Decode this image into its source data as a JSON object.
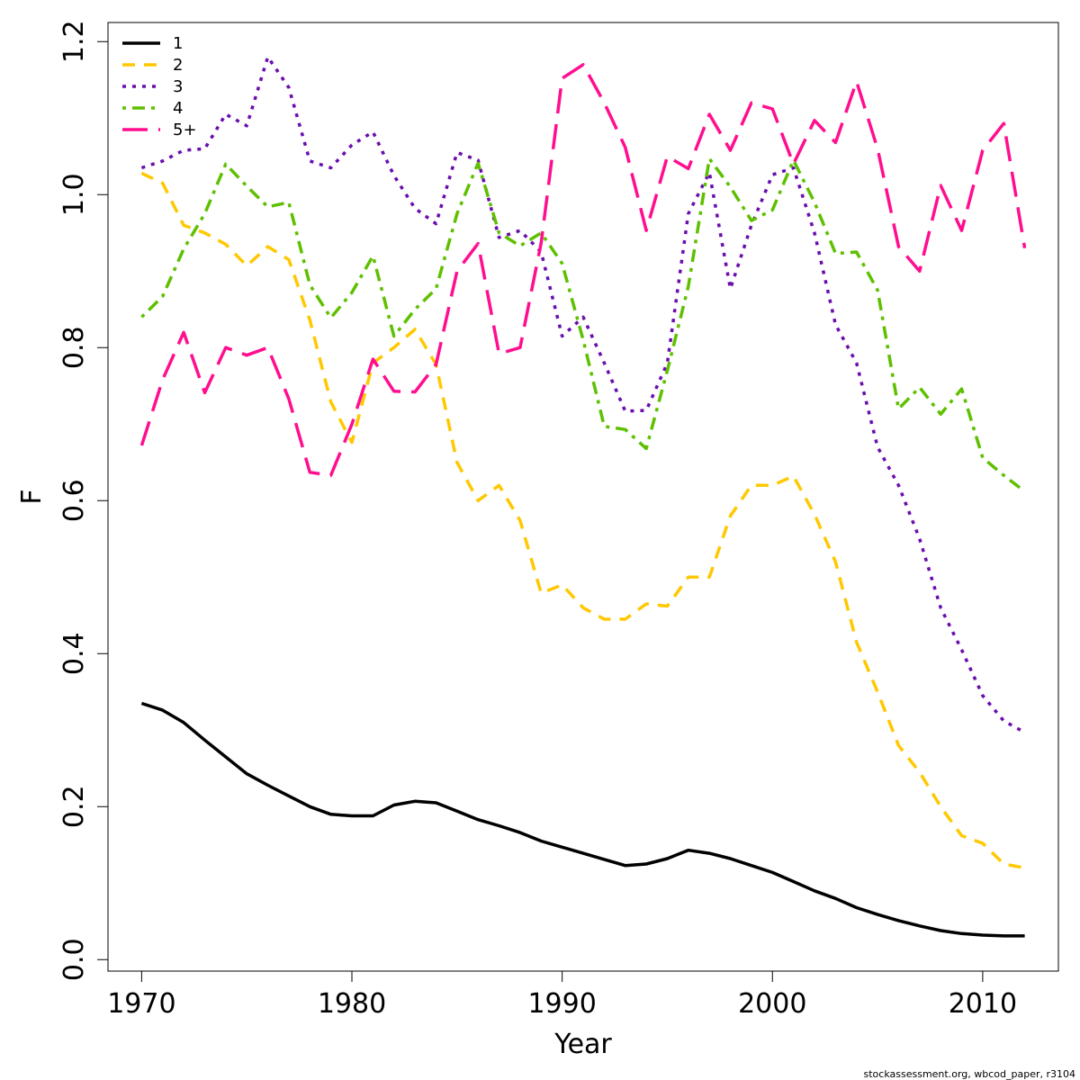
{
  "chart_data": {
    "type": "line",
    "xlabel": "Year",
    "ylabel": "F",
    "xlim": [
      1968.4,
      2013.6
    ],
    "ylim": [
      -0.015,
      1.225
    ],
    "x_ticks": [
      1970,
      1980,
      1990,
      2000,
      2010
    ],
    "y_ticks": [
      0.0,
      0.2,
      0.4,
      0.6,
      0.8,
      1.0,
      1.2
    ],
    "x_tick_labels": [
      "1970",
      "1980",
      "1990",
      "2000",
      "2010"
    ],
    "y_tick_labels": [
      "0.0",
      "0.2",
      "0.4",
      "0.6",
      "0.8",
      "1.0",
      "1.2"
    ],
    "grid": false,
    "legend_position": "top-left",
    "x": [
      1970,
      1971,
      1972,
      1973,
      1974,
      1975,
      1976,
      1977,
      1978,
      1979,
      1980,
      1981,
      1982,
      1983,
      1984,
      1985,
      1986,
      1987,
      1988,
      1989,
      1990,
      1991,
      1992,
      1993,
      1994,
      1995,
      1996,
      1997,
      1998,
      1999,
      2000,
      2001,
      2002,
      2003,
      2004,
      2005,
      2006,
      2007,
      2008,
      2009,
      2010,
      2011,
      2012
    ],
    "series": [
      {
        "name": "1",
        "color": "#000000",
        "dash": "solid",
        "values": [
          0.335,
          0.326,
          0.31,
          0.287,
          0.265,
          0.243,
          0.228,
          0.214,
          0.2,
          0.19,
          0.188,
          0.188,
          0.202,
          0.207,
          0.205,
          0.194,
          0.183,
          0.175,
          0.166,
          0.155,
          0.147,
          0.139,
          0.131,
          0.123,
          0.125,
          0.132,
          0.143,
          0.139,
          0.132,
          0.123,
          0.114,
          0.102,
          0.09,
          0.08,
          0.068,
          0.059,
          0.051,
          0.044,
          0.038,
          0.034,
          0.032,
          0.031,
          0.031
        ]
      },
      {
        "name": "2",
        "color": "#ffc800",
        "dash": "dashed",
        "values": [
          1.028,
          1.015,
          0.96,
          0.95,
          0.935,
          0.907,
          0.932,
          0.915,
          0.836,
          0.729,
          0.676,
          0.78,
          0.8,
          0.824,
          0.778,
          0.65,
          0.6,
          0.62,
          0.574,
          0.479,
          0.49,
          0.46,
          0.445,
          0.445,
          0.465,
          0.462,
          0.5,
          0.5,
          0.58,
          0.62,
          0.62,
          0.632,
          0.582,
          0.52,
          0.415,
          0.35,
          0.28,
          0.245,
          0.2,
          0.162,
          0.152,
          0.125,
          0.12
        ]
      },
      {
        "name": "3",
        "color": "#6a0dad",
        "dash": "dotted",
        "values": [
          1.035,
          1.044,
          1.058,
          1.06,
          1.105,
          1.09,
          1.18,
          1.14,
          1.044,
          1.035,
          1.065,
          1.082,
          1.025,
          0.982,
          0.962,
          1.055,
          1.045,
          0.944,
          0.953,
          0.925,
          0.815,
          0.84,
          0.78,
          0.717,
          0.718,
          0.78,
          0.975,
          1.029,
          0.877,
          0.96,
          1.026,
          1.035,
          0.95,
          0.83,
          0.78,
          0.67,
          0.62,
          0.55,
          0.46,
          0.405,
          0.345,
          0.312,
          0.297
        ]
      },
      {
        "name": "4",
        "color": "#5ec000",
        "dash": "dashdot",
        "values": [
          0.84,
          0.867,
          0.929,
          0.975,
          1.04,
          1.011,
          0.984,
          0.99,
          0.882,
          0.839,
          0.872,
          0.92,
          0.815,
          0.85,
          0.877,
          0.975,
          1.041,
          0.95,
          0.933,
          0.95,
          0.91,
          0.81,
          0.697,
          0.693,
          0.668,
          0.77,
          0.88,
          1.047,
          1.01,
          0.966,
          0.98,
          1.045,
          0.99,
          0.923,
          0.925,
          0.875,
          0.72,
          0.748,
          0.713,
          0.746,
          0.656,
          0.633,
          0.612
        ]
      },
      {
        "name": "5+",
        "color": "#ff0e8f",
        "dash": "longdash",
        "values": [
          0.672,
          0.758,
          0.82,
          0.741,
          0.8,
          0.79,
          0.8,
          0.733,
          0.637,
          0.633,
          0.7,
          0.785,
          0.743,
          0.742,
          0.778,
          0.9,
          0.936,
          0.792,
          0.8,
          0.937,
          1.152,
          1.17,
          1.12,
          1.062,
          0.953,
          1.05,
          1.034,
          1.105,
          1.058,
          1.12,
          1.112,
          1.04,
          1.097,
          1.068,
          1.148,
          1.06,
          0.932,
          0.9,
          1.012,
          0.953,
          1.058,
          1.093,
          0.93
        ]
      }
    ]
  },
  "credit": "stockassessment.org, wbcod_paper, r3104"
}
